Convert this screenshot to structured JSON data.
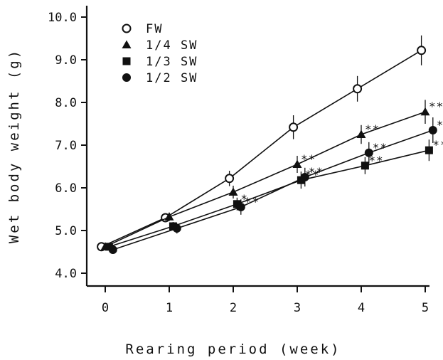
{
  "chart_data": {
    "type": "line",
    "xlabel": "Rearing period (week)",
    "ylabel": "Wet body weight (g)",
    "x": [
      0,
      1,
      2,
      3,
      4,
      5
    ],
    "xticks": [
      "0",
      "1",
      "2",
      "3",
      "4",
      "5"
    ],
    "yticks": [
      "4.0",
      "5.0",
      "6.0",
      "7.0",
      "8.0",
      "9.0",
      "10.0"
    ],
    "xlim": [
      0,
      5
    ],
    "ylim": [
      3.6,
      10.0
    ],
    "grid": false,
    "legend_position": "top-left",
    "series": [
      {
        "name": "FW",
        "marker": "open-circle",
        "offset": -0.06,
        "values": [
          4.62,
          5.3,
          6.22,
          7.42,
          8.32,
          9.22
        ],
        "errors": [
          0.08,
          0.1,
          0.18,
          0.28,
          0.3,
          0.35
        ],
        "significance": [
          "",
          "",
          "",
          "",
          "",
          ""
        ]
      },
      {
        "name": "1/4 SW",
        "marker": "filled-triangle",
        "offset": 0.0,
        "values": [
          4.62,
          5.32,
          5.9,
          6.55,
          7.25,
          7.78
        ],
        "errors": [
          0.08,
          0.1,
          0.15,
          0.2,
          0.22,
          0.28
        ],
        "significance": [
          "",
          "",
          "",
          "**",
          "**",
          "**"
        ]
      },
      {
        "name": "1/3 SW",
        "marker": "filled-square",
        "offset": 0.06,
        "values": [
          4.62,
          5.1,
          5.62,
          6.18,
          6.52,
          6.88
        ],
        "errors": [
          0.08,
          0.1,
          0.15,
          0.2,
          0.2,
          0.25
        ],
        "significance": [
          "",
          "",
          "*",
          "**",
          "**",
          "**"
        ]
      },
      {
        "name": "1/2 SW",
        "marker": "filled-circle",
        "offset": 0.12,
        "values": [
          4.55,
          5.05,
          5.55,
          6.25,
          6.82,
          7.35
        ],
        "errors": [
          0.1,
          0.12,
          0.18,
          0.22,
          0.25,
          0.3
        ],
        "significance": [
          "",
          "",
          "**",
          "**",
          "**",
          "**"
        ]
      }
    ]
  }
}
